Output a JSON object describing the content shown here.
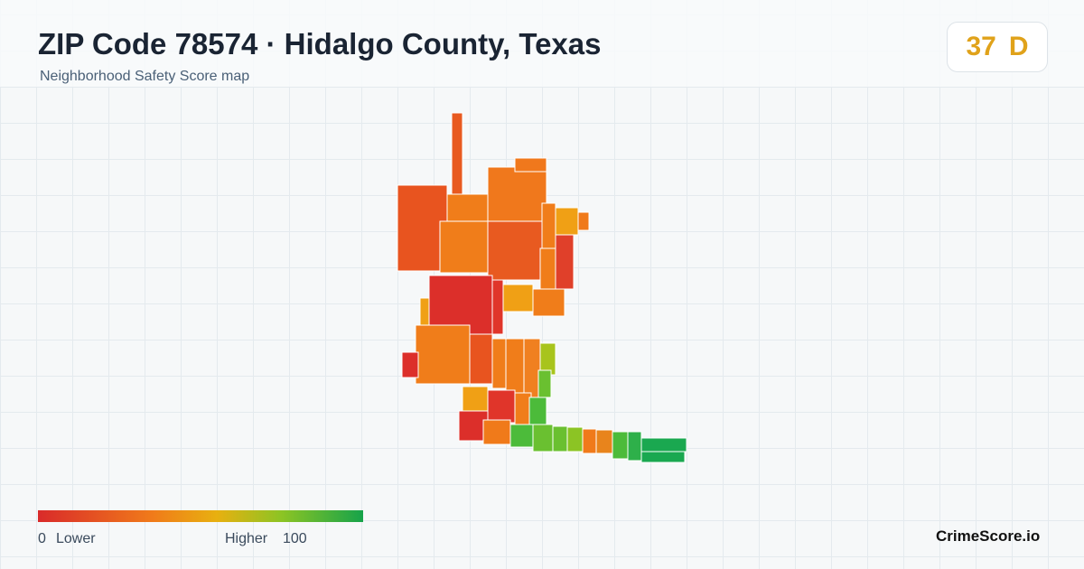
{
  "header": {
    "title": "ZIP Code 78574 · Hidalgo County, Texas",
    "subtitle": "Neighborhood Safety Score map"
  },
  "score": {
    "value": "37",
    "grade": "D"
  },
  "legend": {
    "min": "0",
    "min_label": "Lower",
    "max_label": "Higher",
    "max": "100"
  },
  "brand": "CrimeScore.io"
}
